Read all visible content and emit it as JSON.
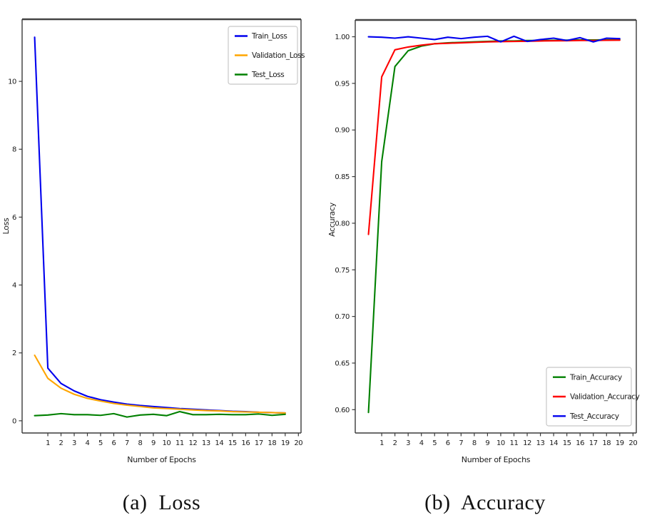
{
  "figure": {
    "background_color": "#ffffff",
    "axis_color": "#3a3a3a",
    "text_color": "#1a1a1a"
  },
  "chart_data": [
    {
      "id": "loss",
      "type": "line",
      "caption": "(a)  Loss",
      "xlabel": "Number of Epochs",
      "ylabel": "Loss",
      "x": [
        0,
        1,
        2,
        3,
        4,
        5,
        6,
        7,
        8,
        9,
        10,
        11,
        12,
        13,
        14,
        15,
        16,
        17,
        18,
        19
      ],
      "xticks": [
        1,
        2,
        3,
        4,
        5,
        6,
        7,
        8,
        9,
        10,
        11,
        12,
        13,
        14,
        15,
        16,
        17,
        18,
        19,
        20
      ],
      "xtick_labels": [
        "1",
        "2",
        "3",
        "4",
        "5",
        "6",
        "7",
        "8",
        "9",
        "10",
        "11",
        "12",
        "13",
        "14",
        "15",
        "16",
        "17",
        "18",
        "19",
        "20"
      ],
      "yticks": [
        0,
        2,
        4,
        6,
        8,
        10
      ],
      "ytick_labels": [
        "0",
        "2",
        "4",
        "6",
        "8",
        "10"
      ],
      "xlim": [
        -0.95,
        20.2
      ],
      "ylim": [
        -0.36,
        11.83
      ],
      "grid": false,
      "legend_position": "upper-right",
      "series": [
        {
          "name": "Train_Loss",
          "color": "#0000ee",
          "values": [
            11.3,
            1.55,
            1.1,
            0.88,
            0.72,
            0.62,
            0.55,
            0.49,
            0.45,
            0.42,
            0.39,
            0.36,
            0.34,
            0.32,
            0.3,
            0.28,
            0.27,
            0.25,
            0.24,
            0.23
          ]
        },
        {
          "name": "Validation_Loss",
          "color": "#ffa500",
          "values": [
            1.93,
            1.25,
            0.96,
            0.78,
            0.66,
            0.58,
            0.51,
            0.46,
            0.42,
            0.38,
            0.36,
            0.34,
            0.32,
            0.3,
            0.29,
            0.27,
            0.26,
            0.25,
            0.24,
            0.23
          ]
        },
        {
          "name": "Test_Loss",
          "color": "#008000",
          "values": [
            0.15,
            0.17,
            0.21,
            0.18,
            0.18,
            0.16,
            0.21,
            0.11,
            0.17,
            0.19,
            0.15,
            0.27,
            0.18,
            0.18,
            0.19,
            0.18,
            0.18,
            0.2,
            0.16,
            0.19
          ]
        }
      ]
    },
    {
      "id": "accuracy",
      "type": "line",
      "caption": "(b)  Accuracy",
      "xlabel": "Number of Epochs",
      "ylabel": "Accuracy",
      "x": [
        0,
        1,
        2,
        3,
        4,
        5,
        6,
        7,
        8,
        9,
        10,
        11,
        12,
        13,
        14,
        15,
        16,
        17,
        18,
        19
      ],
      "xticks": [
        1,
        2,
        3,
        4,
        5,
        6,
        7,
        8,
        9,
        10,
        11,
        12,
        13,
        14,
        15,
        16,
        17,
        18,
        19,
        20
      ],
      "xtick_labels": [
        "1",
        "2",
        "3",
        "4",
        "5",
        "6",
        "7",
        "8",
        "9",
        "10",
        "11",
        "12",
        "13",
        "14",
        "15",
        "16",
        "17",
        "18",
        "19",
        "20"
      ],
      "yticks": [
        1.0,
        0.95,
        0.9,
        0.85,
        0.8,
        0.75,
        0.7,
        0.65,
        0.6
      ],
      "ytick_labels": [
        "1.00",
        "0.95",
        "0.90",
        "0.85",
        "0.80",
        "0.75",
        "0.70",
        "0.65",
        "0.60"
      ],
      "xlim": [
        -1.0,
        20.25
      ],
      "ylim": [
        0.575,
        1.018
      ],
      "grid": false,
      "legend_position": "lower-right",
      "series": [
        {
          "name": "Train_Accuracy",
          "color": "#008000",
          "values": [
            0.597,
            0.866,
            0.968,
            0.985,
            0.99,
            0.9925,
            0.9935,
            0.994,
            0.9945,
            0.995,
            0.9955,
            0.9955,
            0.996,
            0.996,
            0.9962,
            0.9963,
            0.9965,
            0.9965,
            0.9967,
            0.9968
          ]
        },
        {
          "name": "Validation_Accuracy",
          "color": "#ff0000",
          "values": [
            0.788,
            0.957,
            0.986,
            0.989,
            0.991,
            0.9925,
            0.993,
            0.9935,
            0.994,
            0.9945,
            0.9948,
            0.995,
            0.9952,
            0.9955,
            0.9957,
            0.9958,
            0.996,
            0.996,
            0.9962,
            0.9963
          ]
        },
        {
          "name": "Test_Accuracy",
          "color": "#0000ee",
          "values": [
            1.0,
            0.9995,
            0.9985,
            1.0,
            0.9985,
            0.997,
            0.9995,
            0.998,
            0.9995,
            1.0005,
            0.9945,
            1.0005,
            0.995,
            0.997,
            0.9985,
            0.996,
            0.999,
            0.9945,
            0.9985,
            0.998
          ]
        }
      ]
    }
  ]
}
